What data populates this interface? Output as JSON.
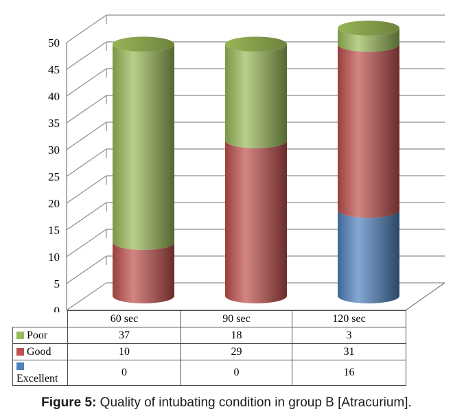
{
  "figure": {
    "caption_prefix": "Figure 5:",
    "caption_text": " Quality of intubating condition in group B [Atracurium]."
  },
  "chart_data": {
    "type": "bar",
    "variant": "3d-stacked-cylinder",
    "title": "",
    "xlabel": "",
    "ylabel": "",
    "categories": [
      "60 sec",
      "90 sec",
      "120 sec"
    ],
    "series": [
      {
        "name": "Poor",
        "color": "#9BBB59",
        "values": [
          37,
          18,
          3
        ]
      },
      {
        "name": "Good",
        "color": "#C0504D",
        "values": [
          10,
          29,
          31
        ]
      },
      {
        "name": "Excellent",
        "color": "#4F81BD",
        "values": [
          0,
          0,
          16
        ]
      }
    ],
    "stack_order_bottom_to_top": [
      "Excellent",
      "Good",
      "Poor"
    ],
    "ylim": [
      0,
      50
    ],
    "ytick_step": 5,
    "grid": true,
    "legend_position": "data-table-left",
    "gridline_color": "#8c8c8c",
    "axis_color": "#777777",
    "table_border_color": "#4a4a4a"
  }
}
